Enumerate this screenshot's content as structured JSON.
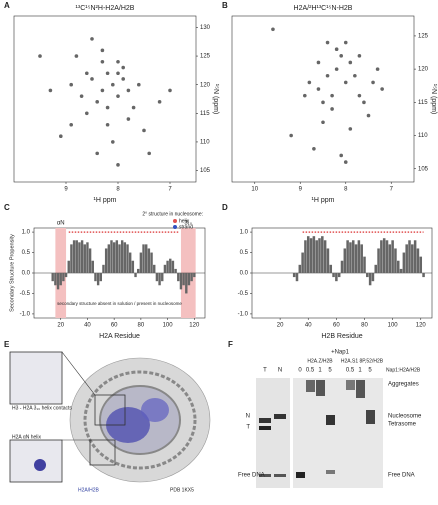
{
  "chart_data": [
    {
      "type": "scatter",
      "panel_label": "A",
      "title": "¹³C¹⁵N²H-H2A/H2B",
      "xlabel": "¹H ppm",
      "ylabel": "¹⁵N (ppm)",
      "color": "#666666",
      "x": [
        8.9,
        8.7,
        8.5,
        8.4,
        8.3,
        8.2,
        8.1,
        8.0,
        7.9,
        7.8,
        8.6,
        8.2,
        8.0,
        7.7,
        7.5,
        8.8,
        8.3,
        7.9,
        8.1,
        8.4,
        9.3,
        9.5,
        7.2,
        7.4,
        8.0,
        8.5,
        8.2,
        7.8,
        8.6,
        7.6,
        8.9,
        9.1,
        7.0,
        8.3,
        8.0
      ],
      "y": [
        120,
        118,
        121,
        117,
        119,
        122,
        120,
        118,
        121,
        119,
        115,
        113,
        124,
        116,
        112,
        125,
        126,
        123,
        110,
        108,
        119,
        125,
        117,
        108,
        106,
        128,
        116,
        114,
        122,
        120,
        113,
        111,
        119,
        124,
        122
      ],
      "xlim": [
        10,
        6.5
      ],
      "xticks": [
        9,
        8,
        7
      ],
      "ylim": [
        103,
        132
      ],
      "yticks": [
        105,
        110,
        115,
        120,
        125,
        130
      ]
    },
    {
      "type": "scatter",
      "panel_label": "B",
      "title": "H2A/²H¹³C¹⁵N-H2B",
      "xlabel": "¹H ppm",
      "ylabel": "¹⁵N (ppm)",
      "color": "#666666",
      "x": [
        8.6,
        8.4,
        8.2,
        8.0,
        7.9,
        7.7,
        8.3,
        8.1,
        7.8,
        8.5,
        8.7,
        8.0,
        7.6,
        7.4,
        8.2,
        8.9,
        9.2,
        7.5,
        8.4,
        8.1,
        7.9,
        8.6,
        7.3,
        8.8,
        9.6,
        8.3,
        7.7,
        8.0,
        8.5,
        7.2
      ],
      "y": [
        117,
        119,
        120,
        118,
        121,
        116,
        114,
        122,
        119,
        112,
        108,
        106,
        115,
        118,
        123,
        116,
        110,
        113,
        124,
        107,
        111,
        121,
        120,
        118,
        126,
        116,
        122,
        124,
        115,
        117
      ],
      "xlim": [
        10.5,
        6.5
      ],
      "xticks": [
        10,
        9,
        8,
        7
      ],
      "ylim": [
        103,
        128
      ],
      "yticks": [
        105,
        110,
        115,
        120,
        125
      ]
    },
    {
      "type": "bar",
      "panel_label": "C",
      "xlabel": "H2A Residue",
      "ylabel": "Secondary Structure Propensity",
      "color": "#666666",
      "x": [
        14,
        16,
        18,
        20,
        22,
        24,
        26,
        28,
        30,
        32,
        34,
        36,
        38,
        40,
        42,
        44,
        46,
        48,
        50,
        52,
        54,
        56,
        58,
        60,
        62,
        64,
        66,
        68,
        70,
        72,
        74,
        76,
        78,
        80,
        82,
        84,
        86,
        88,
        90,
        92,
        94,
        96,
        98,
        100,
        102,
        104,
        106,
        108,
        110,
        112,
        114,
        116,
        118,
        120
      ],
      "values": [
        -0.2,
        -0.3,
        -0.4,
        -0.3,
        -0.2,
        -0.1,
        0.3,
        0.7,
        0.8,
        0.8,
        0.75,
        0.8,
        0.7,
        0.75,
        0.6,
        0.3,
        -0.2,
        -0.3,
        -0.2,
        0.2,
        0.6,
        0.7,
        0.8,
        0.75,
        0.8,
        0.7,
        0.8,
        0.75,
        0.7,
        0.5,
        0.3,
        -0.1,
        0.1,
        0.5,
        0.7,
        0.7,
        0.6,
        0.5,
        0.2,
        -0.2,
        -0.3,
        -0.2,
        0.2,
        0.3,
        0.35,
        0.3,
        0.1,
        -0.2,
        -0.4,
        -0.3,
        -0.5,
        -0.3,
        -0.2,
        -0.1
      ],
      "xlim": [
        0,
        128
      ],
      "xticks": [
        20,
        40,
        60,
        80,
        100,
        120
      ],
      "ylim": [
        -1.1,
        1.1
      ],
      "yticks": [
        {
          "value": -1,
          "label": "-1.0"
        },
        -0.5,
        {
          "value": 0,
          "label": "0.0"
        },
        0.5,
        {
          "value": 1,
          "label": "1.0"
        }
      ],
      "helix_ranges": [
        [
          26,
          108
        ]
      ],
      "helix_color": "#e05050",
      "shaded_ranges": [
        [
          16,
          24
        ],
        [
          110,
          121
        ]
      ],
      "shaded_labels": [
        "αN",
        "3₁₀"
      ],
      "annotation": "secondary structure absent in solution / present in nucleosome",
      "legend_title": "2° structure in nucleosome:",
      "legend": [
        {
          "name": "helix",
          "color": "#e05050"
        },
        {
          "name": "strand",
          "color": "#3050c0"
        }
      ]
    },
    {
      "type": "bar",
      "panel_label": "D",
      "xlabel": "H2B Residue",
      "color": "#666666",
      "x": [
        30,
        32,
        34,
        36,
        38,
        40,
        42,
        44,
        46,
        48,
        50,
        52,
        54,
        56,
        58,
        60,
        62,
        64,
        66,
        68,
        70,
        72,
        74,
        76,
        78,
        80,
        82,
        84,
        86,
        88,
        90,
        92,
        94,
        96,
        98,
        100,
        102,
        104,
        106,
        108,
        110,
        112,
        114,
        116,
        118,
        120,
        122
      ],
      "values": [
        -0.1,
        -0.2,
        0.2,
        0.5,
        0.8,
        0.9,
        0.85,
        0.9,
        0.8,
        0.85,
        0.9,
        0.8,
        0.6,
        0.2,
        -0.1,
        -0.2,
        -0.1,
        0.3,
        0.6,
        0.8,
        0.75,
        0.8,
        0.7,
        0.8,
        0.7,
        0.4,
        -0.1,
        -0.3,
        -0.2,
        0.2,
        0.6,
        0.8,
        0.85,
        0.8,
        0.7,
        0.8,
        0.6,
        0.3,
        0.1,
        0.5,
        0.7,
        0.8,
        0.7,
        0.8,
        0.6,
        0.4,
        -0.1
      ],
      "xlim": [
        0,
        128
      ],
      "xticks": [
        20,
        40,
        60,
        80,
        100,
        120
      ],
      "ylim": [
        -1.1,
        1.1
      ],
      "yticks": [
        {
          "value": -1,
          "label": "-1.0"
        },
        -0.5,
        {
          "value": 0,
          "label": "0.0"
        },
        0.5,
        {
          "value": 1,
          "label": "1.0"
        }
      ],
      "helix_ranges": [
        [
          36,
          122
        ]
      ],
      "helix_color": "#e05050"
    }
  ],
  "structure_panel": {
    "panel_label": "E",
    "labels": [
      "H3 - H2A 3₁₀ helix contacts",
      "H2A αN helix",
      "H2A/H2B",
      "PDB 1KX5"
    ]
  },
  "gel_panel": {
    "panel_label": "F",
    "top_label": "+Nap1",
    "groups": [
      "H2A.Z/H2B",
      "H2A.S1 8P,52/H2B"
    ],
    "lanes": [
      "T",
      "N",
      "0",
      "0.5",
      "1",
      "5",
      "0.5",
      "1",
      "5"
    ],
    "ratio_label": "Nap1:H2A/H2B",
    "bands_right": [
      "Aggregates",
      "Nucleosome",
      "Tetrasome",
      "Free DNA"
    ],
    "bands_left": [
      "N",
      "T",
      "Free DNA"
    ]
  }
}
